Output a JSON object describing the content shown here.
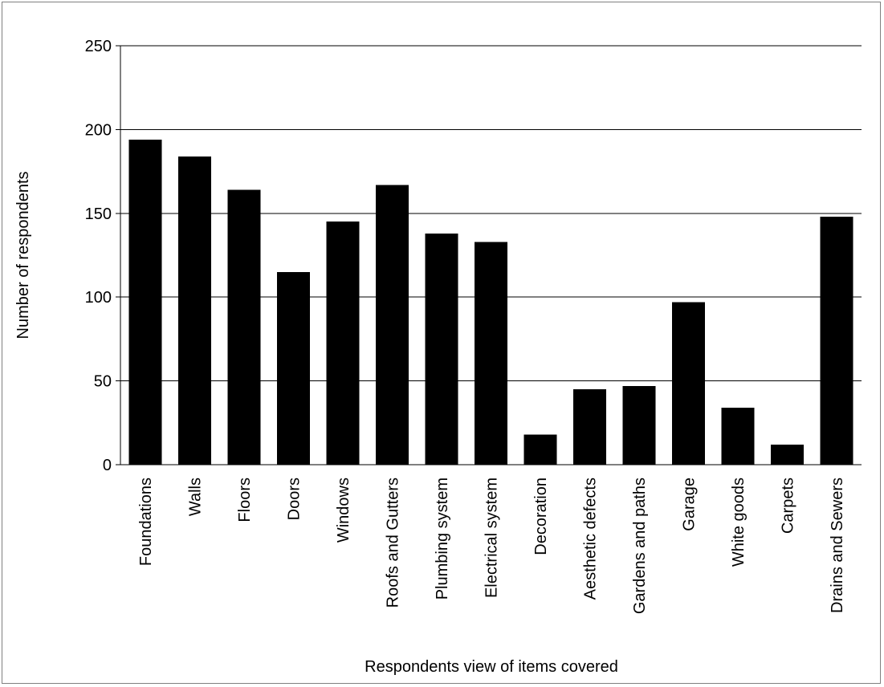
{
  "chart_data": {
    "type": "bar",
    "xlabel": "Respondents view of items covered",
    "ylabel": "Number of respondents",
    "ylim": [
      0,
      250
    ],
    "yticks": [
      0,
      50,
      100,
      150,
      200,
      250
    ],
    "grid": true,
    "legend": "none",
    "bar_color": "#000000",
    "categories": [
      "Foundations",
      "Walls",
      "Floors",
      "Doors",
      "Windows",
      "Roofs and Gutters",
      "Plumbing system",
      "Electrical system",
      "Decoration",
      "Aesthetic defects",
      "Gardens and paths",
      "Garage",
      "White goods",
      "Carpets",
      "Drains and Sewers"
    ],
    "values": [
      194,
      184,
      164,
      115,
      145,
      167,
      138,
      133,
      18,
      45,
      47,
      97,
      34,
      12,
      148
    ]
  }
}
